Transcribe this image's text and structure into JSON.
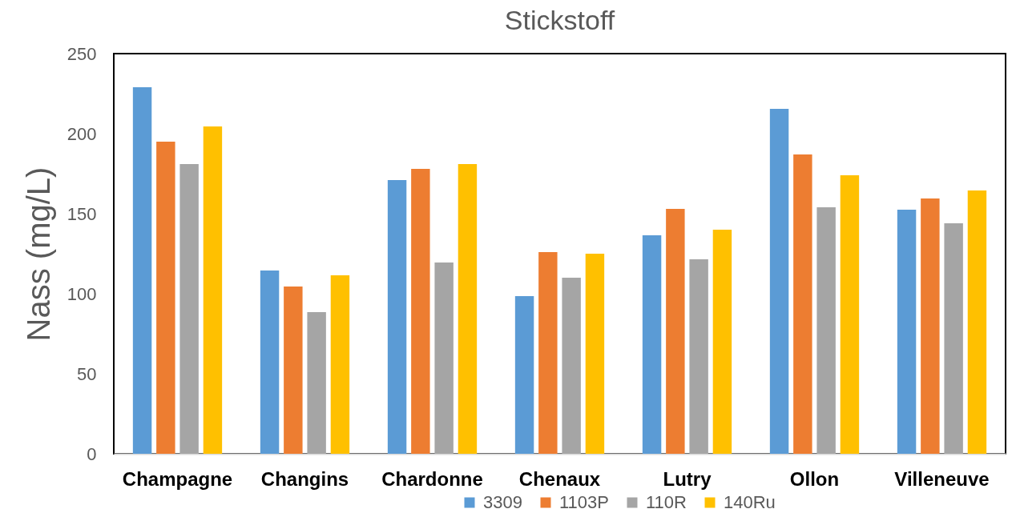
{
  "chart_data": {
    "type": "bar",
    "title": "Stickstoff",
    "ylabel": "Nass (mg/L)",
    "categories": [
      "Champagne",
      "Changins",
      "Chardonne",
      "Chenaux",
      "Lutry",
      "Ollon",
      "Villeneuve"
    ],
    "series": [
      {
        "name": "3309",
        "color": "#5b9bd5",
        "values": [
          229,
          114.5,
          171,
          98.5,
          136.5,
          215.5,
          152.5
        ]
      },
      {
        "name": "1103P",
        "color": "#ed7d31",
        "values": [
          195,
          104.5,
          178,
          126,
          153,
          187,
          159.5
        ]
      },
      {
        "name": "110R",
        "color": "#a5a5a5",
        "values": [
          181,
          88.5,
          119.5,
          110,
          121.5,
          154,
          144
        ]
      },
      {
        "name": "140Ru",
        "color": "#ffc000",
        "values": [
          204.5,
          111.5,
          181,
          125,
          140,
          174,
          164.5
        ]
      }
    ],
    "ylim": [
      0,
      250
    ],
    "yticks": [
      0,
      50,
      100,
      150,
      200,
      250
    ],
    "grid": false,
    "legend": "bottom"
  }
}
